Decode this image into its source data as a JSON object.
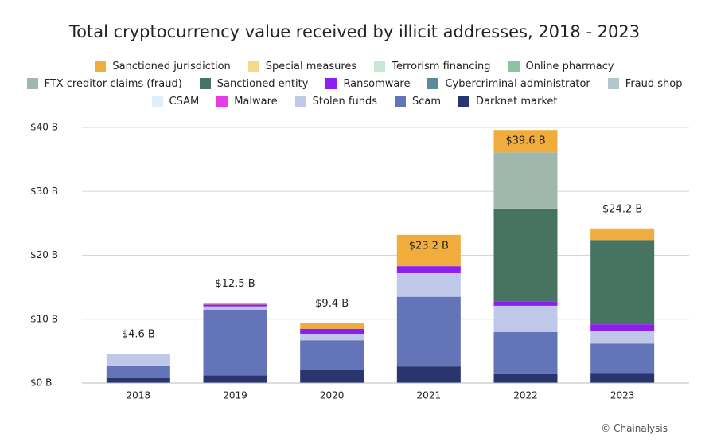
{
  "chart_data": {
    "type": "stacked-bar",
    "title": "Total cryptocurrency value received by illicit addresses, 2018 - 2023",
    "categories": [
      "2018",
      "2019",
      "2020",
      "2021",
      "2022",
      "2023"
    ],
    "series": [
      {
        "name": "Sanctioned jurisdiction",
        "color": "#f0ac3c",
        "values": [
          0,
          0.2,
          0.9,
          4.9,
          3.5,
          1.8
        ]
      },
      {
        "name": "Special measures",
        "color": "#f5d98a",
        "values": [
          0,
          0,
          0,
          0,
          0,
          0
        ]
      },
      {
        "name": "Terrorism financing",
        "color": "#c8e6d5",
        "values": [
          0,
          0,
          0,
          0,
          0,
          0
        ]
      },
      {
        "name": "Online pharmacy",
        "color": "#8cc4a0",
        "values": [
          0.1,
          0,
          0,
          0,
          0,
          0
        ]
      },
      {
        "name": "FTX creditor claims (fraud)",
        "color": "#9fb8ad",
        "values": [
          0,
          0,
          0,
          0,
          8.8,
          0
        ]
      },
      {
        "name": "Sanctioned entity",
        "color": "#467362",
        "values": [
          0,
          0,
          0,
          0,
          14.5,
          13.2
        ]
      },
      {
        "name": "Ransomware",
        "color": "#8b1ff0",
        "values": [
          0,
          0.3,
          0.9,
          1.1,
          0.7,
          1.1
        ]
      },
      {
        "name": "Cybercriminal administrator",
        "color": "#5a8a9c",
        "values": [
          0,
          0,
          0,
          0,
          0,
          0
        ]
      },
      {
        "name": "Fraud shop",
        "color": "#b0c8cc",
        "values": [
          0,
          0,
          0,
          0,
          0,
          0
        ]
      },
      {
        "name": "CSAM",
        "color": "#e0eef8",
        "values": [
          0,
          0,
          0,
          0,
          0,
          0
        ]
      },
      {
        "name": "Malware",
        "color": "#e63ce6",
        "values": [
          0,
          0,
          0,
          0,
          0,
          0
        ]
      },
      {
        "name": "Stolen funds",
        "color": "#c0c8ea",
        "values": [
          1.8,
          0.5,
          0.9,
          3.7,
          4.1,
          1.9
        ]
      },
      {
        "name": "Scam",
        "color": "#6474b8",
        "values": [
          1.9,
          10.3,
          4.7,
          10.9,
          6.5,
          4.6
        ]
      },
      {
        "name": "Darknet market",
        "color": "#2a3570",
        "values": [
          0.8,
          1.2,
          2.0,
          2.6,
          1.5,
          1.6
        ]
      }
    ],
    "totals": {
      "values": [
        4.6,
        12.5,
        9.4,
        23.2,
        39.6,
        24.2
      ],
      "value_labels": [
        "$4.6 B",
        "$12.5 B",
        "$9.4 B",
        "$23.2 B",
        "$39.6 B",
        "$24.2 B"
      ]
    },
    "ylim": [
      0,
      40
    ],
    "yticks": [
      {
        "value": 0,
        "label": "$0 B"
      },
      {
        "value": 10,
        "label": "$10 B"
      },
      {
        "value": 20,
        "label": "$20 B"
      },
      {
        "value": 30,
        "label": "$30 B"
      },
      {
        "value": 40,
        "label": "$40 B"
      }
    ],
    "grid": true,
    "source": "© Chainalysis"
  }
}
